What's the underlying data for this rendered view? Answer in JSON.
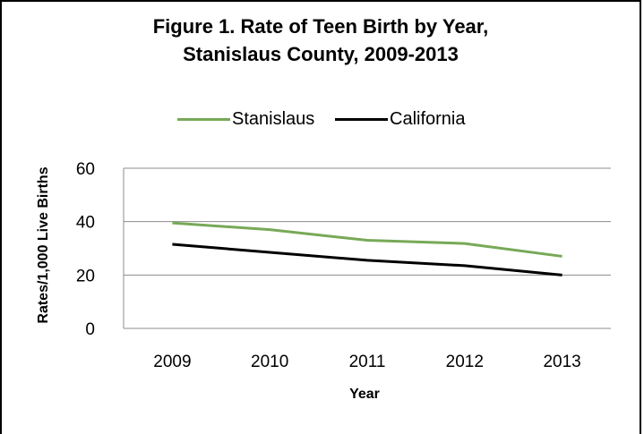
{
  "title_line1": "Figure 1. Rate of Teen Birth by Year,",
  "title_line2": "Stanislaus County, 2009-2013",
  "chart_data": {
    "type": "line",
    "title": "Figure 1. Rate of Teen Birth by Year, Stanislaus County, 2009-2013",
    "xlabel": "Year",
    "ylabel": "Rates/1,000 Live Births",
    "x": [
      "2009",
      "2010",
      "2011",
      "2012",
      "2013"
    ],
    "ylim": [
      0,
      60
    ],
    "yticks": [
      "0",
      "20",
      "40",
      "60"
    ],
    "grid": true,
    "legend_placement": "top",
    "series": [
      {
        "name": "Stanislaus",
        "color": "#77a957",
        "values": [
          39.5,
          37.0,
          33.0,
          31.8,
          27.0
        ]
      },
      {
        "name": "California",
        "color": "#000000",
        "values": [
          31.5,
          28.5,
          25.5,
          23.5,
          20.0
        ]
      }
    ]
  }
}
